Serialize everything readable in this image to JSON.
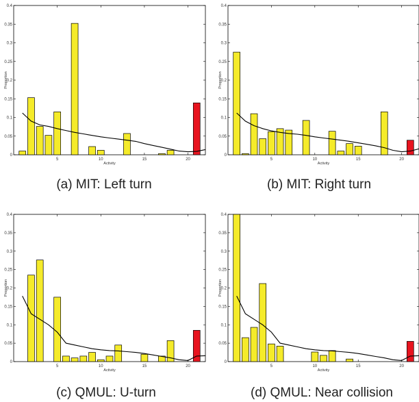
{
  "colors": {
    "normal_bar": "#f5eb2a",
    "anomaly_bar": "#e8141f",
    "bar_stroke": "#000000",
    "curve": "#000000"
  },
  "chart_data": [
    {
      "type": "bar",
      "caption": "(a) MIT: Left turn",
      "xlabel": "Activity",
      "ylabel": "Proportion",
      "xlim": [
        0,
        22
      ],
      "ylim": [
        0,
        0.4
      ],
      "xticks": [
        "5",
        "10",
        "15",
        "20"
      ],
      "yticks": [
        "0",
        "0.05",
        "0.1",
        "0.15",
        "0.2",
        "0.25",
        "0.3",
        "0.35",
        "0.4"
      ],
      "x": [
        1,
        2,
        3,
        4,
        5,
        6,
        7,
        8,
        9,
        10,
        11,
        12,
        13,
        14,
        15,
        16,
        17,
        18,
        19,
        20,
        21
      ],
      "values": [
        0.01,
        0.153,
        0.076,
        0.052,
        0.115,
        0.0,
        0.352,
        0.0,
        0.022,
        0.012,
        0.0,
        0.0,
        0.057,
        0.0,
        0.0,
        0.0,
        0.003,
        0.012,
        0.0,
        0.0,
        0.139
      ],
      "anomaly_index": 20,
      "curve_x": [
        1,
        2,
        3,
        4,
        5,
        6,
        7,
        8,
        9,
        10,
        11,
        12,
        13,
        14,
        15,
        16,
        17,
        18,
        19,
        20,
        21,
        22
      ],
      "curve_y": [
        0.112,
        0.09,
        0.08,
        0.076,
        0.07,
        0.065,
        0.06,
        0.056,
        0.052,
        0.048,
        0.045,
        0.042,
        0.039,
        0.036,
        0.03,
        0.025,
        0.02,
        0.015,
        0.01,
        0.008,
        0.009,
        0.014
      ]
    },
    {
      "type": "bar",
      "caption": "(b) MIT: Right turn",
      "xlabel": "Activity",
      "ylabel": "Proportion",
      "xlim": [
        0,
        22
      ],
      "ylim": [
        0,
        0.4
      ],
      "xticks": [
        "5",
        "10",
        "15",
        "20"
      ],
      "yticks": [
        "0",
        "0.05",
        "0.1",
        "0.15",
        "0.2",
        "0.25",
        "0.3",
        "0.35",
        "0.4"
      ],
      "x": [
        1,
        2,
        3,
        4,
        5,
        6,
        7,
        8,
        9,
        10,
        11,
        12,
        13,
        14,
        15,
        16,
        17,
        18,
        19,
        20,
        21
      ],
      "values": [
        0.275,
        0.003,
        0.11,
        0.043,
        0.062,
        0.07,
        0.066,
        0.0,
        0.092,
        0.0,
        0.0,
        0.063,
        0.01,
        0.03,
        0.023,
        0.0,
        0.0,
        0.115,
        0.0,
        0.0,
        0.039
      ],
      "anomaly_index": 20,
      "curve_x": [
        1,
        2,
        3,
        4,
        5,
        6,
        7,
        8,
        9,
        10,
        11,
        12,
        13,
        14,
        15,
        16,
        17,
        18,
        19,
        20,
        21,
        22
      ],
      "curve_y": [
        0.112,
        0.09,
        0.078,
        0.07,
        0.064,
        0.06,
        0.057,
        0.055,
        0.052,
        0.048,
        0.045,
        0.042,
        0.039,
        0.036,
        0.032,
        0.028,
        0.024,
        0.019,
        0.012,
        0.008,
        0.01,
        0.016
      ]
    },
    {
      "type": "bar",
      "caption": "(c) QMUL: U-turn",
      "xlabel": "Activity",
      "ylabel": "Proportion",
      "xlim": [
        0,
        22
      ],
      "ylim": [
        0,
        0.4
      ],
      "xticks": [
        "5",
        "10",
        "15",
        "20"
      ],
      "yticks": [
        "0",
        "0.05",
        "0.1",
        "0.15",
        "0.2",
        "0.25",
        "0.3",
        "0.35",
        "0.4"
      ],
      "x": [
        1,
        2,
        3,
        4,
        5,
        6,
        7,
        8,
        9,
        10,
        11,
        12,
        13,
        14,
        15,
        16,
        17,
        18,
        19,
        20,
        21
      ],
      "values": [
        0.0,
        0.235,
        0.276,
        0.0,
        0.175,
        0.015,
        0.01,
        0.015,
        0.025,
        0.005,
        0.015,
        0.045,
        0.0,
        0.0,
        0.02,
        0.0,
        0.015,
        0.057,
        0.0,
        0.0,
        0.085
      ],
      "anomaly_index": 20,
      "curve_x": [
        1,
        2,
        3,
        4,
        5,
        6,
        7,
        8,
        9,
        10,
        11,
        12,
        13,
        14,
        15,
        16,
        17,
        18,
        19,
        20,
        21,
        22
      ],
      "curve_y": [
        0.178,
        0.13,
        0.115,
        0.1,
        0.08,
        0.05,
        0.045,
        0.04,
        0.035,
        0.032,
        0.03,
        0.029,
        0.027,
        0.025,
        0.022,
        0.018,
        0.014,
        0.01,
        0.005,
        0.003,
        0.015,
        0.016
      ]
    },
    {
      "type": "bar",
      "caption": "(d) QMUL: Near collision",
      "xlabel": "Activity",
      "ylabel": "Proportion",
      "xlim": [
        0,
        22
      ],
      "ylim": [
        0,
        0.4
      ],
      "xticks": [
        "5",
        "10",
        "15",
        "20"
      ],
      "yticks": [
        "0",
        "0.05",
        "0.1",
        "0.15",
        "0.2",
        "0.25",
        "0.3",
        "0.35",
        "0.4"
      ],
      "x": [
        1,
        2,
        3,
        4,
        5,
        6,
        7,
        8,
        9,
        10,
        11,
        12,
        13,
        14,
        15,
        16,
        17,
        18,
        19,
        20,
        21
      ],
      "values": [
        0.4,
        0.065,
        0.093,
        0.212,
        0.048,
        0.042,
        0.0,
        0.0,
        0.0,
        0.026,
        0.017,
        0.03,
        0.0,
        0.007,
        0.0,
        0.0,
        0.0,
        0.0,
        0.0,
        0.0,
        0.055
      ],
      "anomaly_index": 20,
      "curve_x": [
        1,
        2,
        3,
        4,
        5,
        6,
        7,
        8,
        9,
        10,
        11,
        12,
        13,
        14,
        15,
        16,
        17,
        18,
        19,
        20,
        21,
        22
      ],
      "curve_y": [
        0.178,
        0.13,
        0.115,
        0.1,
        0.08,
        0.05,
        0.045,
        0.04,
        0.035,
        0.032,
        0.03,
        0.029,
        0.027,
        0.025,
        0.022,
        0.018,
        0.014,
        0.01,
        0.005,
        0.003,
        0.015,
        0.016
      ]
    }
  ]
}
